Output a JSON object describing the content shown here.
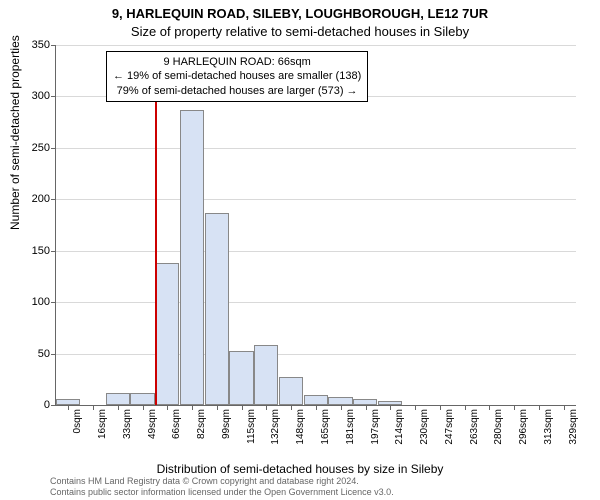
{
  "chart": {
    "type": "histogram",
    "title_main": "9, HARLEQUIN ROAD, SILEBY, LOUGHBOROUGH, LE12 7UR",
    "title_sub": "Size of property relative to semi-detached houses in Sileby",
    "y_label": "Number of semi-detached properties",
    "x_label": "Distribution of semi-detached houses by size in Sileby",
    "ylim": [
      0,
      350
    ],
    "ytick_step": 50,
    "yticks": [
      0,
      50,
      100,
      150,
      200,
      250,
      300,
      350
    ],
    "x_categories": [
      "0sqm",
      "16sqm",
      "33sqm",
      "49sqm",
      "66sqm",
      "82sqm",
      "99sqm",
      "115sqm",
      "132sqm",
      "148sqm",
      "165sqm",
      "181sqm",
      "197sqm",
      "214sqm",
      "230sqm",
      "247sqm",
      "263sqm",
      "280sqm",
      "296sqm",
      "313sqm",
      "329sqm"
    ],
    "values": [
      6,
      0,
      12,
      12,
      138,
      287,
      187,
      53,
      58,
      27,
      10,
      8,
      6,
      4,
      0,
      0,
      0,
      0,
      0,
      0,
      0
    ],
    "bar_color": "#d7e2f4",
    "bar_border_color": "#888888",
    "grid_color": "#666666",
    "background_color": "#ffffff",
    "marker": {
      "position_index": 4,
      "color": "#cc0000",
      "height_value": 300
    },
    "info_box": {
      "line1": "9 HARLEQUIN ROAD: 66sqm",
      "line2": "← 19% of semi-detached houses are smaller (138)",
      "line3": "79% of semi-detached houses are larger (573) →"
    },
    "footer_line1": "Contains HM Land Registry data © Crown copyright and database right 2024.",
    "footer_line2": "Contains public sector information licensed under the Open Government Licence v3.0.",
    "title_fontsize": 13,
    "label_fontsize": 12,
    "tick_fontsize": 11
  }
}
